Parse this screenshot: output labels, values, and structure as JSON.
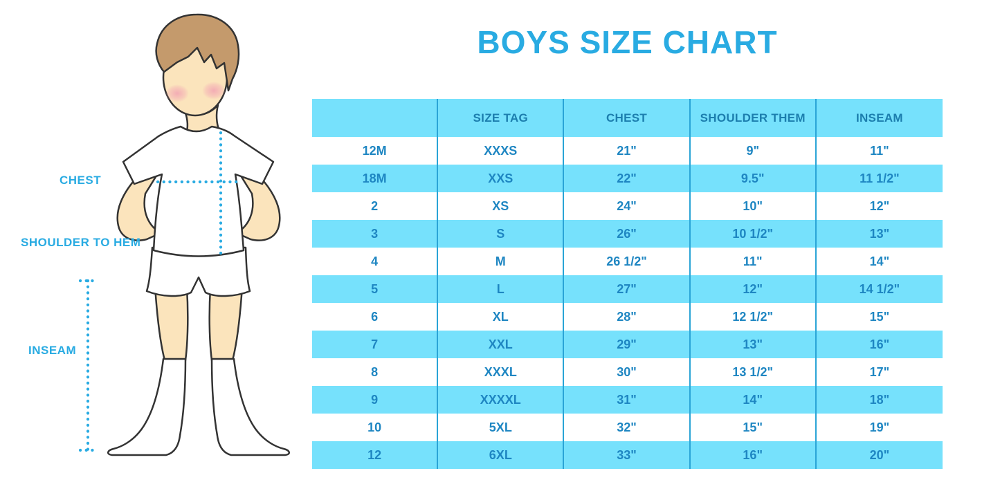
{
  "title": "BOYS SIZE CHART",
  "figure": {
    "description": "illustration of a boy in white t-shirt, shorts and knee socks with dotted measurement guides",
    "labels": {
      "chest": "CHEST",
      "shoulder_to_hem": "SHOULDER TO HEM",
      "inseam": "INSEAM"
    }
  },
  "colors": {
    "accent_blue": "#29ABE2",
    "table_text": "#1E86C2",
    "header_text": "#1C7EAE",
    "row_cyan": "#76E1FC",
    "grid_line": "#2AA4D6",
    "skin": "#FBE4BC",
    "hair": "#C49A6C",
    "blush": "#F2A3B3",
    "outline": "#333333"
  },
  "chart_data": {
    "type": "table",
    "title": "BOYS SIZE CHART",
    "columns": [
      "",
      "SIZE TAG",
      "CHEST",
      "SHOULDER THEM",
      "INSEAM"
    ],
    "rows": [
      [
        "12M",
        "XXXS",
        "21\"",
        "9\"",
        "11\""
      ],
      [
        "18M",
        "XXS",
        "22\"",
        "9.5\"",
        "11 1/2\""
      ],
      [
        "2",
        "XS",
        "24\"",
        "10\"",
        "12\""
      ],
      [
        "3",
        "S",
        "26\"",
        "10 1/2\"",
        "13\""
      ],
      [
        "4",
        "M",
        "26 1/2\"",
        "11\"",
        "14\""
      ],
      [
        "5",
        "L",
        "27\"",
        "12\"",
        "14 1/2\""
      ],
      [
        "6",
        "XL",
        "28\"",
        "12 1/2\"",
        "15\""
      ],
      [
        "7",
        "XXL",
        "29\"",
        "13\"",
        "16\""
      ],
      [
        "8",
        "XXXL",
        "30\"",
        "13 1/2\"",
        "17\""
      ],
      [
        "9",
        "XXXXL",
        "31\"",
        "14\"",
        "18\""
      ],
      [
        "10",
        "5XL",
        "32\"",
        "15\"",
        "19\""
      ],
      [
        "12",
        "6XL",
        "33\"",
        "16\"",
        "20\""
      ]
    ]
  }
}
